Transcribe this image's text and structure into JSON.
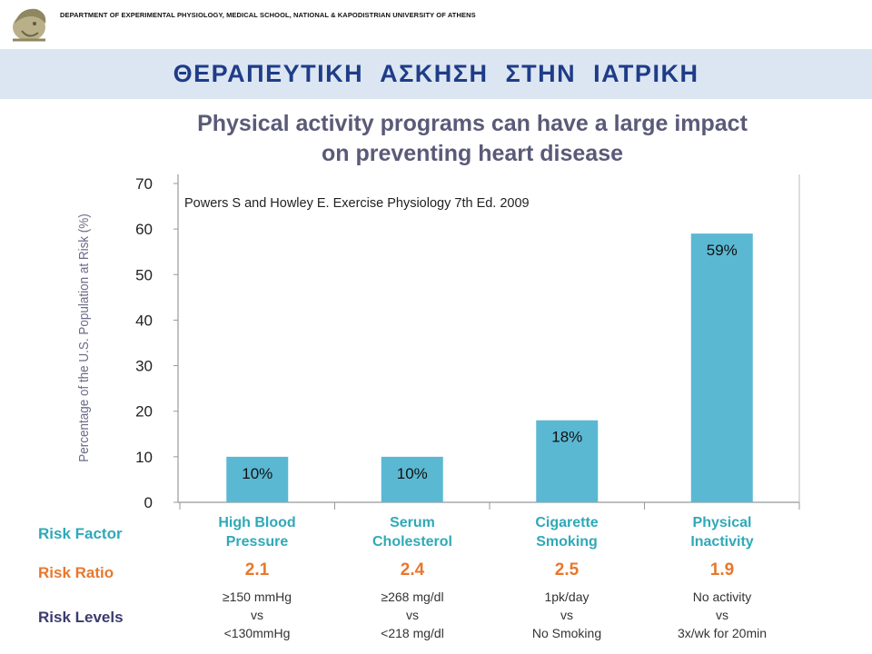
{
  "header": {
    "department": "DEPARTMENT OF EXPERIMENTAL PHYSIOLOGY, MEDICAL SCHOOL, NATIONAL & KAPODISTRIAN UNIVERSITY OF ATHENS",
    "logo_icon": "athena-head-logo",
    "title": "ΘΕΡΑΠΕΥΤΙΚΗ   ΑΣΚΗΣΗ   ΣΤΗΝ   ΙΑΤΡΙΚΗ"
  },
  "chart_data": {
    "type": "bar",
    "title_line1": "Physical activity programs can have a large impact",
    "title_line2": "on preventing heart disease",
    "annotation": "Powers S and Howley E. Exercise Physiology 7th Ed. 2009",
    "ylabel": "Percentage of the U.S. Population at Risk (%)",
    "ylim": [
      0,
      70
    ],
    "yticks": [
      0,
      10,
      20,
      30,
      40,
      50,
      60,
      70
    ],
    "categories": [
      "High Blood Pressure",
      "Serum Cholesterol",
      "Cigarette Smoking",
      "Physical Inactivity"
    ],
    "values": [
      10,
      10,
      18,
      59
    ],
    "data_labels": [
      "10%",
      "10%",
      "18%",
      "59%"
    ],
    "bar_color": "#5bb8d3",
    "grid": false
  },
  "table": {
    "row_labels": {
      "risk_factor": "Risk Factor",
      "risk_ratio": "Risk Ratio",
      "risk_levels": "Risk Levels"
    },
    "columns": [
      {
        "factor_line1": "High Blood",
        "factor_line2": "Pressure",
        "ratio": "2.1",
        "level_line1": "≥150 mmHg",
        "level_line2": "vs",
        "level_line3": "<130mmHg"
      },
      {
        "factor_line1": "Serum",
        "factor_line2": "Cholesterol",
        "ratio": "2.4",
        "level_line1": "≥268 mg/dl",
        "level_line2": "vs",
        "level_line3": "<218 mg/dl"
      },
      {
        "factor_line1": "Cigarette",
        "factor_line2": "Smoking",
        "ratio": "2.5",
        "level_line1": "1pk/day",
        "level_line2": "vs",
        "level_line3": "No Smoking"
      },
      {
        "factor_line1": "Physical",
        "factor_line2": "Inactivity",
        "ratio": "1.9",
        "level_line1": "No activity",
        "level_line2": "vs",
        "level_line3": "3x/wk for 20min"
      }
    ],
    "colors": {
      "factor": "#2fa9b8",
      "ratio": "#e8772e",
      "row_label_factor": "#2fa9b8",
      "row_label_ratio": "#e8772e",
      "row_label_levels": "#3b3b6e"
    }
  }
}
